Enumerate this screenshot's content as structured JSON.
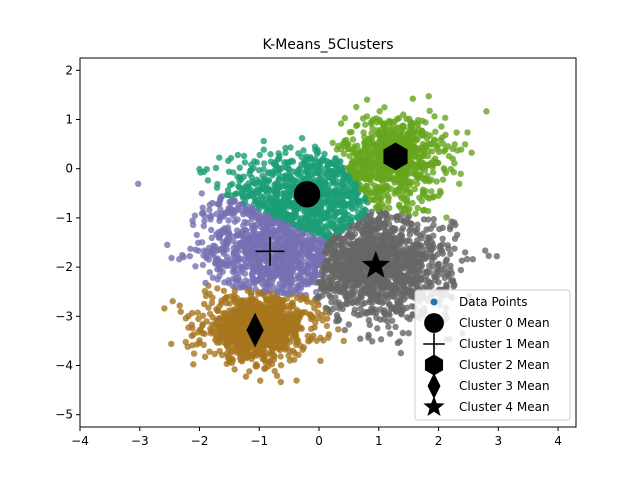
{
  "chart_data": {
    "type": "scatter",
    "title": "K-Means_5Clusters",
    "xlabel": "",
    "ylabel": "",
    "xlim": [
      -4,
      4.3
    ],
    "ylim": [
      -5.25,
      2.25
    ],
    "xticks": [
      "−4",
      "−3",
      "−2",
      "−1",
      "0",
      "1",
      "2",
      "3",
      "4"
    ],
    "xtick_values": [
      -4,
      -3,
      -2,
      -1,
      0,
      1,
      2,
      3,
      4
    ],
    "yticks": [
      "2",
      "1",
      "0",
      "−1",
      "−2",
      "−3",
      "−4",
      "−5"
    ],
    "ytick_values": [
      2,
      1,
      0,
      -1,
      -2,
      -3,
      -4,
      -5
    ],
    "grid": false,
    "legend_position": "lower-right",
    "legend": {
      "data_points": "Data Points",
      "cluster0": "Cluster 0 Mean",
      "cluster1": "Cluster 1 Mean",
      "cluster2": "Cluster 2 Mean",
      "cluster3": "Cluster 3 Mean",
      "cluster4": "Cluster 4 Mean"
    },
    "clusters": [
      {
        "id": 0,
        "color": "#1b9e77",
        "mean": [
          -0.2,
          -0.52
        ],
        "marker": "circle",
        "spread": [
          0.7,
          0.45
        ],
        "count": 900
      },
      {
        "id": 1,
        "color": "#7570b3",
        "mean": [
          -0.82,
          -1.68
        ],
        "marker": "plus",
        "spread": [
          0.55,
          0.55
        ],
        "count": 900
      },
      {
        "id": 2,
        "color": "#66a61e",
        "mean": [
          1.28,
          0.25
        ],
        "marker": "hexagon",
        "spread": [
          0.42,
          0.42
        ],
        "count": 700
      },
      {
        "id": 3,
        "color": "#a6761d",
        "mean": [
          -1.07,
          -3.28
        ],
        "marker": "diamond",
        "spread": [
          0.42,
          0.3
        ],
        "count": 900
      },
      {
        "id": 4,
        "color": "#666666",
        "mean": [
          0.95,
          -1.97
        ],
        "marker": "star",
        "spread": [
          0.62,
          0.55
        ],
        "count": 1400
      }
    ],
    "data_points_color": "#1f77b4"
  }
}
